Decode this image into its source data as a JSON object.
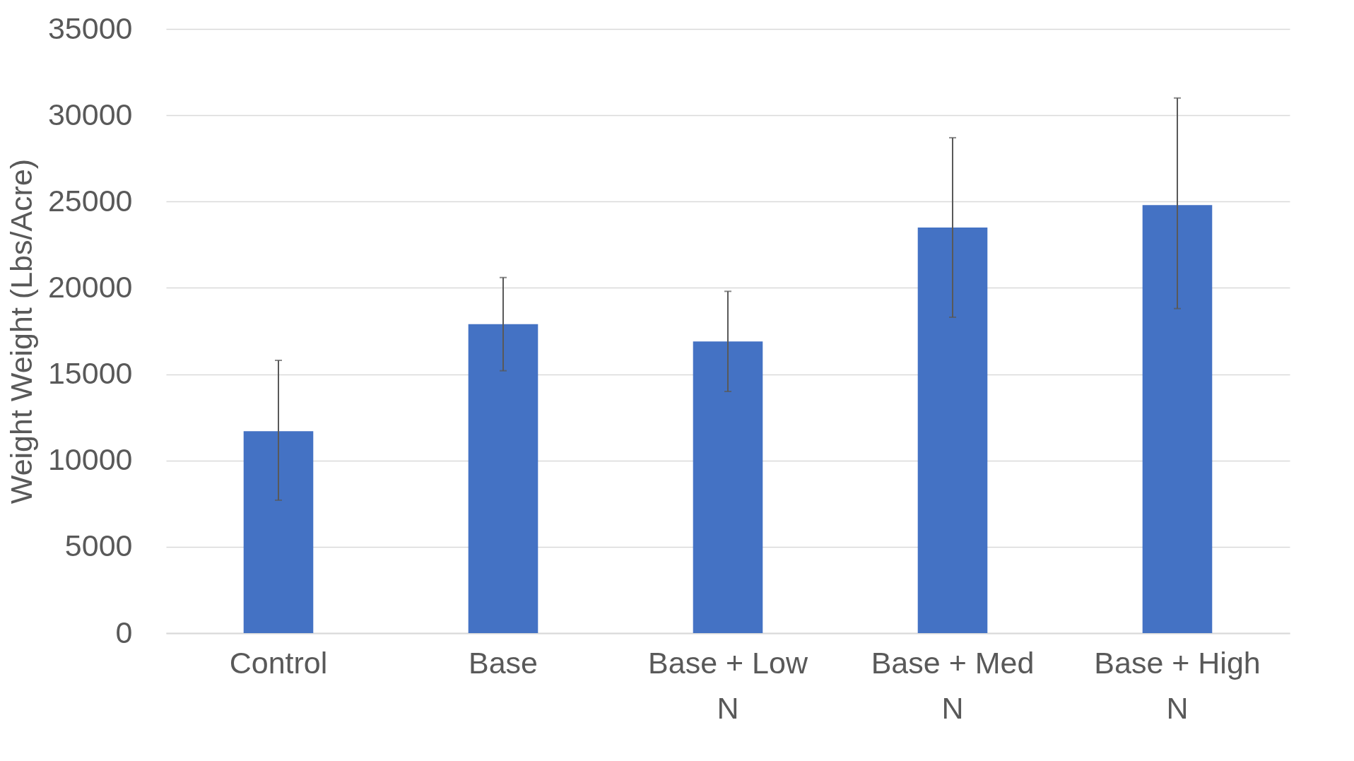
{
  "chart_data": {
    "type": "bar",
    "ylabel": "Weight Weight (Lbs/Acre)",
    "categories": [
      "Control",
      "Base",
      "Base + Low N",
      "Base + Med N",
      "Base + High N"
    ],
    "values": [
      11700,
      17900,
      16900,
      23500,
      24800
    ],
    "errors": [
      [
        7700,
        15800
      ],
      [
        15200,
        20600
      ],
      [
        14000,
        19800
      ],
      [
        18300,
        28700
      ],
      [
        18800,
        31000
      ]
    ],
    "color": "#4472c4",
    "ylim": [
      0,
      35000
    ],
    "yticks": [
      0,
      5000,
      10000,
      15000,
      20000,
      25000,
      30000,
      35000
    ],
    "grid": "y"
  }
}
